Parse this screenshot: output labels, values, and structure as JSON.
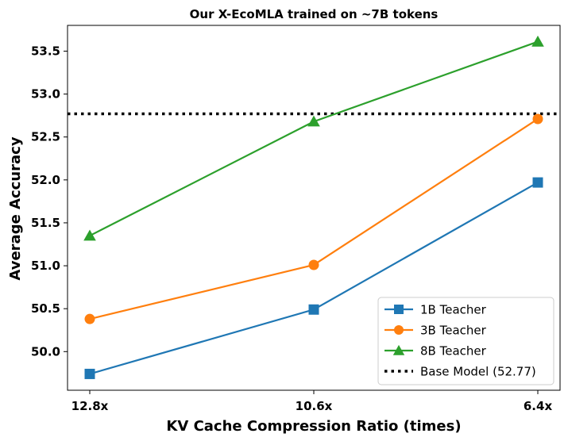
{
  "chart_data": {
    "type": "line",
    "title": "Our X-EcoMLA trained on ~7B tokens",
    "xlabel": "KV Cache Compression Ratio (times)",
    "ylabel": "Average Accuracy",
    "categories": [
      "12.8x",
      "10.6x",
      "6.4x"
    ],
    "ylim": [
      49.55,
      53.8
    ],
    "yticks": [
      "50.0",
      "50.5",
      "51.0",
      "51.5",
      "52.0",
      "52.5",
      "53.0",
      "53.5"
    ],
    "grid": false,
    "legend_position": "lower-right",
    "series": [
      {
        "name": "1B Teacher",
        "values": [
          49.74,
          50.49,
          51.97
        ],
        "color": "#1f77b4",
        "marker": "square"
      },
      {
        "name": "3B Teacher",
        "values": [
          50.38,
          51.01,
          52.71
        ],
        "color": "#ff7f0e",
        "marker": "circle"
      },
      {
        "name": "8B Teacher",
        "values": [
          51.35,
          52.68,
          53.61
        ],
        "color": "#2ca02c",
        "marker": "triangle"
      }
    ],
    "reference_line": {
      "name": "Base Model (52.77)",
      "value": 52.77,
      "color": "#000000",
      "style": "dotted"
    }
  }
}
